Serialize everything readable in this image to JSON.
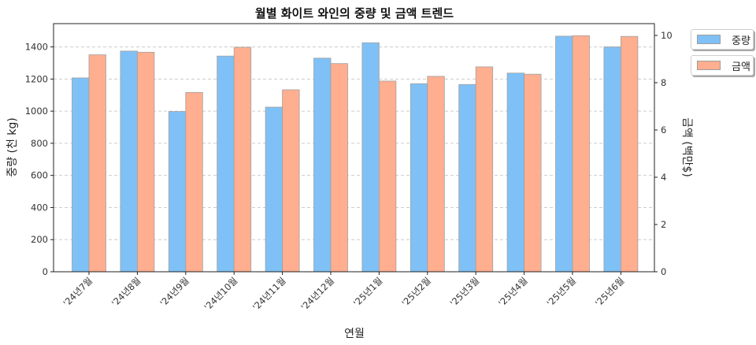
{
  "chart_data": {
    "type": "bar",
    "title": "월별 화이트 와인의 중량 및 금액 트렌드",
    "xlabel": "연월",
    "ylabel": "중량 (천 kg)",
    "y2label": "금액 (백만$)",
    "categories": [
      "'24년7월",
      "'24년8월",
      "'24년9월",
      "'24년10월",
      "'24년11월",
      "'24년12월",
      "'25년1월",
      "'25년2월",
      "'25년3월",
      "'25년4월",
      "'25년5월",
      "'25년6월"
    ],
    "series": [
      {
        "name": "중량",
        "axis": "left",
        "color": "#7FC1F6",
        "values": [
          1207,
          1374,
          998,
          1343,
          1025,
          1330,
          1426,
          1171,
          1166,
          1237,
          1467,
          1400
        ]
      },
      {
        "name": "금액",
        "axis": "right",
        "color": "#FFAE8F",
        "values": [
          9.18,
          9.29,
          7.59,
          9.5,
          7.7,
          8.81,
          8.07,
          8.27,
          8.67,
          8.36,
          9.99,
          9.96
        ]
      }
    ],
    "ylim": [
      0,
      1545
    ],
    "y2lim": [
      0,
      10.5
    ],
    "yticks": [
      0,
      200,
      400,
      600,
      800,
      1000,
      1200,
      1400
    ],
    "y2ticks": [
      0,
      2,
      4,
      6,
      8,
      10
    ],
    "grid": "y dashed",
    "legend_position": "outside upper right"
  },
  "legend": {
    "items": [
      {
        "label": "중량",
        "color": "#7FC1F6"
      },
      {
        "label": "금액",
        "color": "#FFAE8F"
      }
    ]
  }
}
